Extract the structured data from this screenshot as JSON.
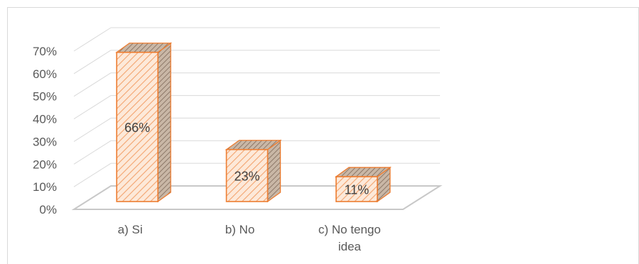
{
  "chart_data": {
    "type": "bar",
    "categories": [
      [
        "a) Si"
      ],
      [
        "b) No"
      ],
      [
        "c) No tengo",
        "idea"
      ]
    ],
    "values": [
      66,
      23,
      11
    ],
    "data_labels": [
      "66%",
      "23%",
      "11%"
    ],
    "y_ticks": [
      "0%",
      "10%",
      "20%",
      "30%",
      "40%",
      "50%",
      "60%",
      "70%"
    ],
    "ylim": [
      0,
      70
    ],
    "grid": true,
    "three_d": true,
    "colors": {
      "bar_face": "#fbe3cf",
      "bar_stripe": "#f4a470",
      "bar_outline": "#ed7d31",
      "bar_dark": "#b9a594",
      "grid": "#d9d9d9",
      "floor": "#c8c8c8"
    }
  }
}
